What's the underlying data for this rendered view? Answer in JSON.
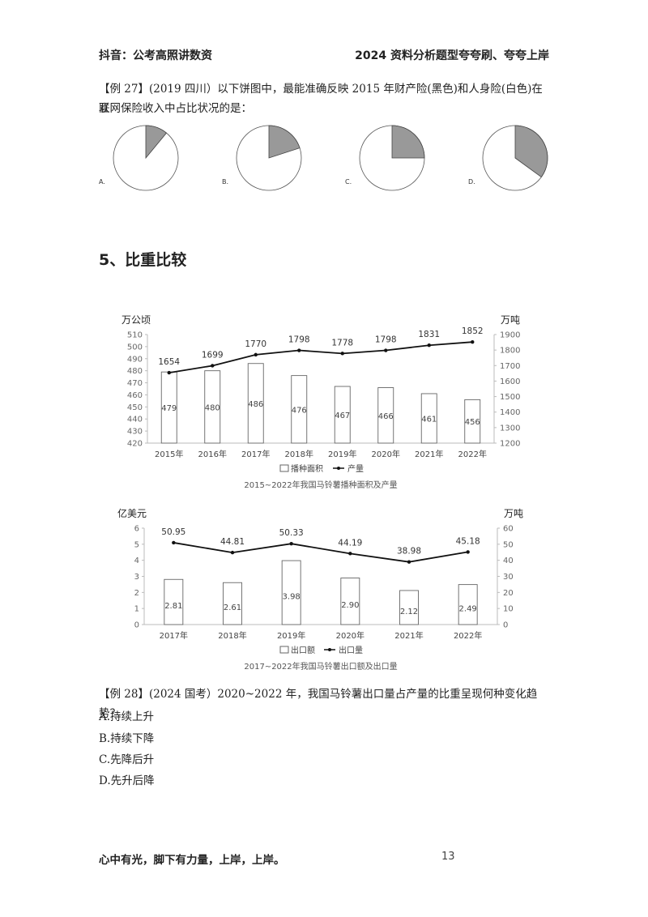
{
  "header": {
    "left": "抖音：公考高照讲数资",
    "right": "2024 资料分析题型夸夸刷、夸夸上岸"
  },
  "example27": {
    "line1": "【例 27】(2019 四川）以下饼图中，最能准确反映 2015 年财产险(黑色)和人身险(白色)在互",
    "line2": "联网保险收入中占比状况的是：",
    "options": [
      {
        "label": "A.",
        "share": 0.11
      },
      {
        "label": "B.",
        "share": 0.2
      },
      {
        "label": "C.",
        "share": 0.25
      },
      {
        "label": "D.",
        "share": 0.35
      }
    ]
  },
  "section": {
    "title": "5、比重比较"
  },
  "chart_data": [
    {
      "type": "bar+line",
      "title": "2015~2022年我国马铃薯播种面积及产量",
      "left_unit": "万公顷",
      "right_unit": "万吨",
      "categories": [
        "2015年",
        "2016年",
        "2017年",
        "2018年",
        "2019年",
        "2020年",
        "2021年",
        "2022年"
      ],
      "series": [
        {
          "name": "播种面积",
          "kind": "bar",
          "axis": "left",
          "values": [
            479,
            480,
            486,
            476,
            467,
            466,
            461,
            456
          ]
        },
        {
          "name": "产量",
          "kind": "line",
          "axis": "right",
          "values": [
            1654,
            1699,
            1770,
            1798,
            1778,
            1798,
            1831,
            1852
          ]
        }
      ],
      "left_ticks": [
        420,
        430,
        440,
        450,
        460,
        470,
        480,
        490,
        500,
        510
      ],
      "right_ticks": [
        1200,
        1300,
        1400,
        1500,
        1600,
        1700,
        1800,
        1900
      ],
      "ylim_left": [
        420,
        510
      ],
      "ylim_right": [
        1200,
        1900
      ],
      "legend": "bottom"
    },
    {
      "type": "bar+line",
      "title": "2017~2022年我国马铃薯出口额及出口量",
      "left_unit": "亿美元",
      "right_unit": "万吨",
      "categories": [
        "2017年",
        "2018年",
        "2019年",
        "2020年",
        "2021年",
        "2022年"
      ],
      "series": [
        {
          "name": "出口额",
          "kind": "bar",
          "axis": "left",
          "values": [
            2.81,
            2.61,
            3.98,
            2.9,
            2.12,
            2.49
          ],
          "labels": [
            "2.81",
            "2.61",
            "3.98",
            "2.90",
            "2.12",
            "2.49"
          ]
        },
        {
          "name": "出口量",
          "kind": "line",
          "axis": "right",
          "values": [
            50.95,
            44.81,
            50.33,
            44.19,
            38.98,
            45.18
          ],
          "labels": [
            "50.95",
            "44.81",
            "50.33",
            "44.19",
            "38.98",
            "45.18"
          ]
        }
      ],
      "left_ticks": [
        0,
        1,
        2,
        3,
        4,
        5,
        6
      ],
      "right_ticks": [
        0,
        10,
        20,
        30,
        40,
        50,
        60
      ],
      "ylim_left": [
        0,
        6
      ],
      "ylim_right": [
        0,
        60
      ],
      "legend": "bottom"
    }
  ],
  "example28": {
    "question": "【例 28】(2024 国考）2020~2022 年，我国马铃薯出口量占产量的比重呈现何种变化趋势？",
    "options": [
      "A.持续上升",
      "B.持续下降",
      "C.先降后升",
      "D.先升后降"
    ]
  },
  "footer": {
    "motto": "心中有光，脚下有力量，上岸，上岸。",
    "page": "13"
  },
  "colors": {
    "pie_dark": "#999999",
    "bar_fill": "#ffffff",
    "line": "#111111"
  }
}
